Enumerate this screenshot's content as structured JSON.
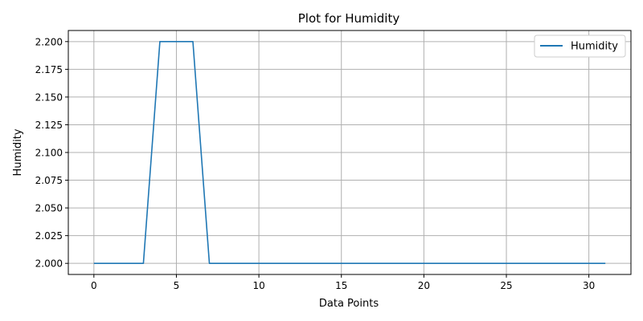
{
  "chart_data": {
    "type": "line",
    "title": "Plot for Humidity",
    "xlabel": "Data Points",
    "ylabel": "Humidity",
    "xlim": [
      -1.55,
      32.55
    ],
    "ylim": [
      1.99,
      2.21
    ],
    "xticks": [
      0,
      5,
      10,
      15,
      20,
      25,
      30
    ],
    "yticks": [
      2.0,
      2.025,
      2.05,
      2.075,
      2.1,
      2.125,
      2.15,
      2.175,
      2.2
    ],
    "ytick_labels": [
      "2.000",
      "2.025",
      "2.050",
      "2.075",
      "2.100",
      "2.125",
      "2.150",
      "2.175",
      "2.200"
    ],
    "grid": true,
    "legend_position": "top-right",
    "series": [
      {
        "name": "Humidity",
        "color": "#1f77b4",
        "x": [
          0,
          1,
          2,
          3,
          4,
          5,
          6,
          7,
          8,
          9,
          10,
          11,
          12,
          13,
          14,
          15,
          16,
          17,
          18,
          19,
          20,
          21,
          22,
          23,
          24,
          25,
          26,
          27,
          28,
          29,
          30,
          31
        ],
        "y": [
          2.0,
          2.0,
          2.0,
          2.0,
          2.2,
          2.2,
          2.2,
          2.0,
          2.0,
          2.0,
          2.0,
          2.0,
          2.0,
          2.0,
          2.0,
          2.0,
          2.0,
          2.0,
          2.0,
          2.0,
          2.0,
          2.0,
          2.0,
          2.0,
          2.0,
          2.0,
          2.0,
          2.0,
          2.0,
          2.0,
          2.0,
          2.0
        ]
      }
    ]
  }
}
